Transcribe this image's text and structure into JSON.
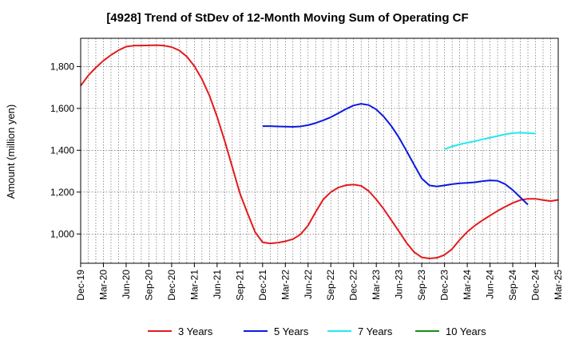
{
  "chart_data": {
    "type": "line",
    "title": "[4928]  Trend of StDev of 12-Month Moving Sum of Operating CF",
    "xlabel": "",
    "ylabel": "Amount (million yen)",
    "ylim": [
      860,
      1935
    ],
    "yticks": [
      1000,
      1200,
      1400,
      1600,
      1800
    ],
    "ytick_labels": [
      "1,000",
      "1,200",
      "1,400",
      "1,600",
      "1,800"
    ],
    "x_start": "2019-12",
    "x_end": "2025-03",
    "xtick_labels": [
      "Dec-19",
      "Mar-20",
      "Jun-20",
      "Sep-20",
      "Dec-20",
      "Mar-21",
      "Jun-21",
      "Sep-21",
      "Dec-21",
      "Mar-22",
      "Jun-22",
      "Sep-22",
      "Dec-22",
      "Mar-23",
      "Jun-23",
      "Sep-23",
      "Dec-23",
      "Mar-24",
      "Jun-24",
      "Sep-24",
      "Dec-24",
      "Mar-25"
    ],
    "grid": true,
    "legend_position": "bottom",
    "series": [
      {
        "name": "3 Years",
        "color": "#e31a1c",
        "start": "2019-12",
        "values": [
          1708,
          1757,
          1795,
          1828,
          1855,
          1878,
          1895,
          1900,
          1900,
          1901,
          1902,
          1900,
          1893,
          1877,
          1848,
          1802,
          1740,
          1660,
          1560,
          1445,
          1320,
          1195,
          1100,
          1010,
          960,
          955,
          958,
          965,
          975,
          998,
          1040,
          1105,
          1165,
          1200,
          1222,
          1233,
          1236,
          1230,
          1205,
          1165,
          1118,
          1065,
          1012,
          957,
          913,
          888,
          883,
          886,
          900,
          928,
          972,
          1010,
          1040,
          1065,
          1088,
          1110,
          1130,
          1148,
          1162,
          1168,
          1168,
          1162,
          1157,
          1163
        ]
      },
      {
        "name": "5 Years",
        "color": "#0a1ae0",
        "start": "2021-12",
        "values": [
          1515,
          1515,
          1514,
          1513,
          1512,
          1514,
          1520,
          1530,
          1543,
          1558,
          1577,
          1597,
          1614,
          1622,
          1616,
          1595,
          1560,
          1515,
          1460,
          1396,
          1330,
          1265,
          1232,
          1227,
          1232,
          1238,
          1242,
          1244,
          1247,
          1252,
          1256,
          1254,
          1238,
          1210,
          1175,
          1140
        ]
      },
      {
        "name": "7 Years",
        "color": "#22e8f0",
        "start": "2023-12",
        "values": [
          1405,
          1418,
          1428,
          1436,
          1443,
          1452,
          1460,
          1468,
          1476,
          1482,
          1484,
          1482,
          1480
        ]
      },
      {
        "name": "10 Years",
        "color": "#1a8c1a",
        "start": "2024-12",
        "values": []
      }
    ]
  }
}
